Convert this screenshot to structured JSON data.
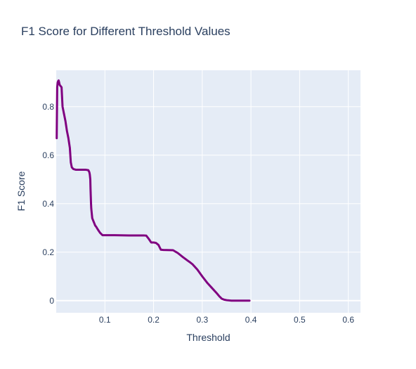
{
  "chart_data": {
    "type": "line",
    "title": "F1 Score for Different Threshold Values",
    "xlabel": "Threshold",
    "ylabel": "F1 Score",
    "xlim": [
      0,
      0.625
    ],
    "ylim": [
      -0.05,
      0.95
    ],
    "x_ticks": [
      0.1,
      0.2,
      0.3,
      0.4,
      0.5,
      0.6
    ],
    "y_ticks": [
      0,
      0.2,
      0.4,
      0.6,
      0.8
    ],
    "x_tick_labels": [
      "0.1",
      "0.2",
      "0.3",
      "0.4",
      "0.5",
      "0.6"
    ],
    "y_tick_labels": [
      "0",
      "0.2",
      "0.4",
      "0.6",
      "0.8"
    ],
    "grid": true,
    "line_color": "#800080",
    "plot_background": "#e5ecf6",
    "grid_color": "#ffffff",
    "series": [
      {
        "x": [
          0.001,
          0.002,
          0.003,
          0.004,
          0.005,
          0.006,
          0.007,
          0.009,
          0.011,
          0.013,
          0.016,
          0.019,
          0.022,
          0.025,
          0.028,
          0.03,
          0.032,
          0.035,
          0.04,
          0.05,
          0.06,
          0.066,
          0.068,
          0.069,
          0.07,
          0.0705,
          0.071,
          0.0715,
          0.072,
          0.073,
          0.074,
          0.076,
          0.078,
          0.08,
          0.082,
          0.085,
          0.09,
          0.095,
          0.1,
          0.12,
          0.15,
          0.18,
          0.185,
          0.19,
          0.195,
          0.2,
          0.205,
          0.21,
          0.215,
          0.22,
          0.24,
          0.25,
          0.26,
          0.27,
          0.275,
          0.28,
          0.29,
          0.3,
          0.31,
          0.32,
          0.33,
          0.335,
          0.34,
          0.345,
          0.35,
          0.36,
          0.37,
          0.38,
          0.39,
          0.397
        ],
        "y": [
          0.67,
          0.88,
          0.9,
          0.905,
          0.908,
          0.9,
          0.89,
          0.885,
          0.88,
          0.8,
          0.77,
          0.74,
          0.7,
          0.67,
          0.63,
          0.57,
          0.55,
          0.543,
          0.54,
          0.54,
          0.54,
          0.538,
          0.53,
          0.52,
          0.5,
          0.46,
          0.43,
          0.4,
          0.38,
          0.36,
          0.34,
          0.33,
          0.32,
          0.31,
          0.305,
          0.295,
          0.28,
          0.27,
          0.27,
          0.27,
          0.269,
          0.269,
          0.268,
          0.255,
          0.24,
          0.24,
          0.238,
          0.23,
          0.21,
          0.209,
          0.208,
          0.196,
          0.18,
          0.165,
          0.158,
          0.15,
          0.128,
          0.1,
          0.074,
          0.052,
          0.03,
          0.018,
          0.008,
          0.004,
          0.002,
          0.0,
          0.0,
          0.0,
          0.0,
          0.0
        ]
      }
    ]
  }
}
